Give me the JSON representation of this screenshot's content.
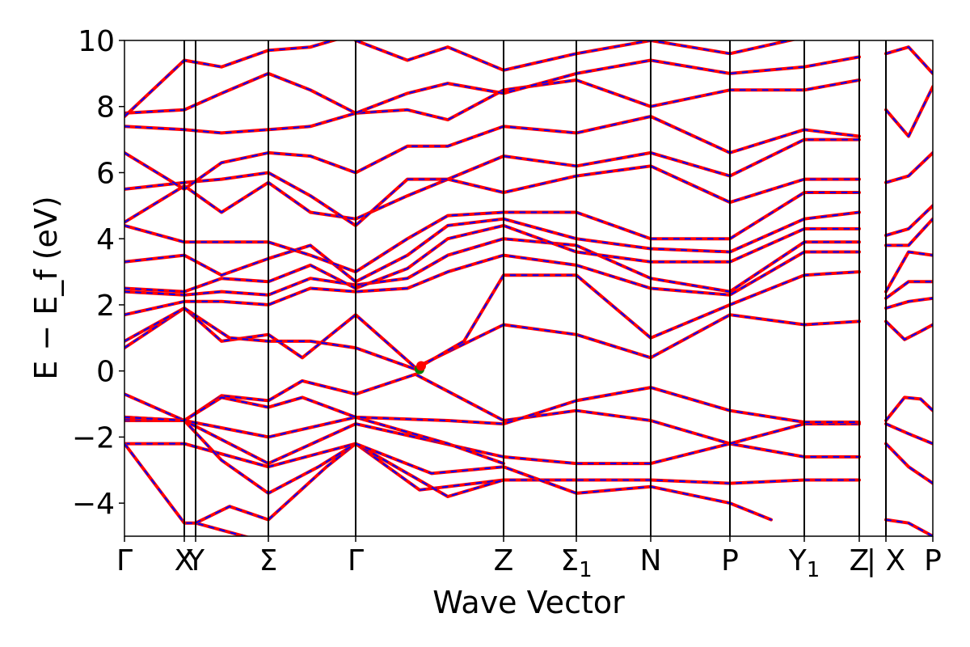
{
  "chart_data": {
    "type": "line",
    "xlabel": "Wave Vector",
    "ylabel": "E − E_f (eV)",
    "ylim": [
      -5,
      10
    ],
    "yticks": [
      -4,
      -2,
      0,
      2,
      4,
      6,
      8,
      10
    ],
    "yticks_labels": [
      "−4",
      "−2",
      "0",
      "2",
      "4",
      "6",
      "8",
      "10"
    ],
    "xlim": [
      0,
      1
    ],
    "kpoints": [
      {
        "label": "Γ",
        "sub": "",
        "x": 0.0
      },
      {
        "label": "X",
        "sub": "",
        "x": 0.074
      },
      {
        "label": "Y",
        "sub": "",
        "x": 0.088
      },
      {
        "label": "Σ",
        "sub": "",
        "x": 0.178
      },
      {
        "label": "Γ",
        "sub": "",
        "x": 0.286
      },
      {
        "label": "Z",
        "sub": "",
        "x": 0.469
      },
      {
        "label": "Σ",
        "sub": "1",
        "x": 0.559
      },
      {
        "label": "N",
        "sub": "",
        "x": 0.651
      },
      {
        "label": "P",
        "sub": "",
        "x": 0.749
      },
      {
        "label": "Y",
        "sub": "1",
        "x": 0.841
      },
      {
        "label": "Z",
        "sub": "",
        "x": 0.909
      },
      {
        "label": "| X",
        "sub": "",
        "x": 0.942
      },
      {
        "label": "P",
        "sub": "",
        "x": 1.0
      }
    ],
    "series_style": [
      {
        "name": "",
        "color": "#ff0000",
        "width": 4,
        "dash": ""
      },
      {
        "name": "",
        "color": "#0000ff",
        "width": 2,
        "dash": "6,8"
      }
    ],
    "markers": [
      {
        "x": 0.365,
        "y": 0.05,
        "color": "#008000"
      },
      {
        "x": 0.367,
        "y": 0.15,
        "color": "#ff0000"
      }
    ],
    "bands": [
      [
        [
          0,
          -2.2
        ],
        [
          0.074,
          -2.2
        ],
        [
          0.178,
          -2.9
        ],
        [
          0.286,
          -2.2
        ],
        [
          0.365,
          -3.6
        ],
        [
          0.469,
          -3.3
        ],
        [
          0.559,
          -3.3
        ],
        [
          0.651,
          -3.3
        ],
        [
          0.749,
          -3.4
        ],
        [
          0.841,
          -3.3
        ],
        [
          0.909,
          -3.3
        ]
      ],
      [
        [
          0,
          -2.2
        ],
        [
          0.04,
          -3.5
        ],
        [
          0.074,
          -4.6
        ],
        [
          0.088,
          -4.6
        ],
        [
          0.178,
          -5.2
        ]
      ],
      [
        [
          0.088,
          -4.6
        ],
        [
          0.13,
          -4.1
        ],
        [
          0.178,
          -4.5
        ],
        [
          0.25,
          -2.9
        ],
        [
          0.286,
          -2.2
        ],
        [
          0.4,
          -3.8
        ],
        [
          0.469,
          -3.3
        ]
      ],
      [
        [
          0,
          -1.4
        ],
        [
          0.074,
          -1.5
        ],
        [
          0.12,
          -2.7
        ],
        [
          0.178,
          -3.7
        ],
        [
          0.24,
          -2.9
        ],
        [
          0.286,
          -2.2
        ],
        [
          0.38,
          -3.1
        ],
        [
          0.469,
          -2.9
        ],
        [
          0.559,
          -3.7
        ],
        [
          0.651,
          -3.5
        ],
        [
          0.749,
          -4.0
        ],
        [
          0.8,
          -4.5
        ]
      ],
      [
        [
          0,
          -1.5
        ],
        [
          0.074,
          -1.5
        ],
        [
          0.178,
          -2.8
        ],
        [
          0.286,
          -1.6
        ],
        [
          0.469,
          -2.6
        ],
        [
          0.559,
          -2.8
        ],
        [
          0.651,
          -2.8
        ],
        [
          0.749,
          -2.2
        ],
        [
          0.841,
          -2.6
        ],
        [
          0.909,
          -2.6
        ]
      ],
      [
        [
          0,
          -1.45
        ],
        [
          0.074,
          -1.5
        ],
        [
          0.178,
          -2.0
        ],
        [
          0.286,
          -1.4
        ],
        [
          0.4,
          -2.2
        ],
        [
          0.469,
          -2.8
        ]
      ],
      [
        [
          0,
          -0.7
        ],
        [
          0.074,
          -1.5
        ],
        [
          0.12,
          -0.75
        ],
        [
          0.178,
          -0.9
        ],
        [
          0.22,
          -0.3
        ],
        [
          0.286,
          -0.7
        ],
        [
          0.36,
          -0.1
        ],
        [
          0.469,
          -1.5
        ],
        [
          0.559,
          -1.2
        ],
        [
          0.651,
          -1.5
        ],
        [
          0.749,
          -2.2
        ],
        [
          0.841,
          -1.6
        ],
        [
          0.909,
          -1.6
        ]
      ],
      [
        [
          0,
          -1.4
        ],
        [
          0.074,
          -1.5
        ],
        [
          0.12,
          -0.8
        ],
        [
          0.178,
          -1.1
        ],
        [
          0.22,
          -0.8
        ],
        [
          0.286,
          -1.4
        ],
        [
          0.4,
          -1.5
        ],
        [
          0.469,
          -1.6
        ],
        [
          0.559,
          -0.9
        ],
        [
          0.651,
          -0.5
        ],
        [
          0.749,
          -1.2
        ],
        [
          0.841,
          -1.55
        ],
        [
          0.909,
          -1.55
        ]
      ],
      [
        [
          0,
          0.7
        ],
        [
          0.074,
          1.9
        ],
        [
          0.12,
          0.9
        ],
        [
          0.178,
          1.1
        ],
        [
          0.22,
          0.4
        ],
        [
          0.286,
          1.7
        ],
        [
          0.36,
          0.1
        ],
        [
          0.469,
          1.4
        ],
        [
          0.559,
          1.1
        ],
        [
          0.651,
          0.4
        ],
        [
          0.749,
          1.7
        ],
        [
          0.841,
          1.4
        ],
        [
          0.909,
          1.5
        ]
      ],
      [
        [
          0,
          0.9
        ],
        [
          0.074,
          1.9
        ],
        [
          0.13,
          1.0
        ],
        [
          0.178,
          0.9
        ],
        [
          0.23,
          0.9
        ],
        [
          0.286,
          0.7
        ],
        [
          0.36,
          0.05
        ],
        [
          0.42,
          0.9
        ],
        [
          0.469,
          2.9
        ],
        [
          0.559,
          2.9
        ],
        [
          0.651,
          1.0
        ],
        [
          0.749,
          2.0
        ],
        [
          0.841,
          2.9
        ],
        [
          0.909,
          3.0
        ]
      ],
      [
        [
          0,
          1.7
        ],
        [
          0.074,
          2.1
        ],
        [
          0.12,
          2.1
        ],
        [
          0.178,
          2.0
        ],
        [
          0.23,
          2.5
        ],
        [
          0.286,
          2.4
        ],
        [
          0.35,
          2.5
        ],
        [
          0.4,
          3.0
        ],
        [
          0.469,
          3.5
        ],
        [
          0.559,
          3.2
        ],
        [
          0.651,
          2.5
        ],
        [
          0.749,
          2.3
        ],
        [
          0.841,
          3.6
        ],
        [
          0.909,
          3.6
        ]
      ],
      [
        [
          0,
          2.4
        ],
        [
          0.074,
          2.3
        ],
        [
          0.12,
          2.4
        ],
        [
          0.178,
          2.3
        ],
        [
          0.23,
          2.8
        ],
        [
          0.286,
          2.6
        ],
        [
          0.35,
          2.8
        ],
        [
          0.4,
          3.5
        ],
        [
          0.469,
          4.0
        ],
        [
          0.559,
          3.8
        ],
        [
          0.651,
          2.8
        ],
        [
          0.749,
          2.4
        ],
        [
          0.841,
          3.9
        ],
        [
          0.909,
          3.9
        ]
      ],
      [
        [
          0,
          2.5
        ],
        [
          0.074,
          2.4
        ],
        [
          0.12,
          2.8
        ],
        [
          0.178,
          2.7
        ],
        [
          0.23,
          3.2
        ],
        [
          0.286,
          2.5
        ],
        [
          0.35,
          3.1
        ],
        [
          0.4,
          4.0
        ],
        [
          0.469,
          4.4
        ],
        [
          0.559,
          3.6
        ],
        [
          0.651,
          3.3
        ],
        [
          0.749,
          3.3
        ],
        [
          0.841,
          4.3
        ],
        [
          0.909,
          4.3
        ]
      ],
      [
        [
          0,
          3.3
        ],
        [
          0.074,
          3.5
        ],
        [
          0.12,
          2.9
        ],
        [
          0.178,
          3.4
        ],
        [
          0.23,
          3.8
        ],
        [
          0.286,
          2.7
        ],
        [
          0.35,
          3.5
        ],
        [
          0.4,
          4.4
        ],
        [
          0.469,
          4.6
        ],
        [
          0.559,
          4.0
        ],
        [
          0.651,
          3.7
        ],
        [
          0.749,
          3.6
        ],
        [
          0.841,
          4.6
        ],
        [
          0.909,
          4.8
        ]
      ],
      [
        [
          0,
          4.4
        ],
        [
          0.074,
          3.9
        ],
        [
          0.12,
          3.9
        ],
        [
          0.178,
          3.9
        ],
        [
          0.23,
          3.5
        ],
        [
          0.286,
          3.0
        ],
        [
          0.35,
          4.0
        ],
        [
          0.4,
          4.7
        ],
        [
          0.469,
          4.8
        ],
        [
          0.559,
          4.8
        ],
        [
          0.651,
          4.0
        ],
        [
          0.749,
          4.0
        ],
        [
          0.841,
          5.4
        ],
        [
          0.909,
          5.4
        ]
      ],
      [
        [
          0,
          4.5
        ],
        [
          0.074,
          5.6
        ],
        [
          0.12,
          4.8
        ],
        [
          0.178,
          5.7
        ],
        [
          0.23,
          4.8
        ],
        [
          0.286,
          4.6
        ],
        [
          0.35,
          5.3
        ],
        [
          0.4,
          5.8
        ],
        [
          0.469,
          5.4
        ],
        [
          0.559,
          5.9
        ],
        [
          0.651,
          6.2
        ],
        [
          0.749,
          5.1
        ],
        [
          0.841,
          5.8
        ],
        [
          0.909,
          5.8
        ]
      ],
      [
        [
          0,
          5.5
        ],
        [
          0.074,
          5.7
        ],
        [
          0.12,
          5.8
        ],
        [
          0.178,
          6.0
        ],
        [
          0.23,
          5.3
        ],
        [
          0.286,
          4.4
        ],
        [
          0.35,
          5.8
        ],
        [
          0.4,
          5.8
        ],
        [
          0.469,
          6.5
        ],
        [
          0.559,
          6.2
        ],
        [
          0.651,
          6.6
        ],
        [
          0.749,
          5.9
        ],
        [
          0.841,
          7.0
        ],
        [
          0.909,
          7.0
        ]
      ],
      [
        [
          0,
          6.6
        ],
        [
          0.074,
          5.5
        ],
        [
          0.12,
          6.3
        ],
        [
          0.178,
          6.6
        ],
        [
          0.23,
          6.5
        ],
        [
          0.286,
          6.0
        ],
        [
          0.35,
          6.8
        ],
        [
          0.4,
          6.8
        ],
        [
          0.469,
          7.4
        ],
        [
          0.559,
          7.2
        ],
        [
          0.651,
          7.7
        ],
        [
          0.749,
          6.6
        ],
        [
          0.841,
          7.3
        ],
        [
          0.909,
          7.1
        ]
      ],
      [
        [
          0,
          7.4
        ],
        [
          0.074,
          7.3
        ],
        [
          0.12,
          7.2
        ],
        [
          0.178,
          7.3
        ],
        [
          0.23,
          7.4
        ],
        [
          0.286,
          7.8
        ],
        [
          0.35,
          7.9
        ],
        [
          0.4,
          7.6
        ],
        [
          0.469,
          8.5
        ],
        [
          0.559,
          8.8
        ],
        [
          0.651,
          8.0
        ],
        [
          0.749,
          8.5
        ],
        [
          0.841,
          8.5
        ],
        [
          0.909,
          8.8
        ]
      ],
      [
        [
          0,
          7.8
        ],
        [
          0.074,
          7.9
        ],
        [
          0.12,
          8.4
        ],
        [
          0.178,
          9.0
        ],
        [
          0.23,
          8.5
        ],
        [
          0.286,
          7.8
        ],
        [
          0.35,
          8.4
        ],
        [
          0.4,
          8.7
        ],
        [
          0.469,
          8.4
        ],
        [
          0.559,
          9.0
        ],
        [
          0.651,
          9.4
        ],
        [
          0.749,
          9.0
        ],
        [
          0.841,
          9.2
        ],
        [
          0.909,
          9.5
        ]
      ],
      [
        [
          0,
          7.7
        ],
        [
          0.074,
          9.4
        ],
        [
          0.12,
          9.2
        ],
        [
          0.178,
          9.7
        ],
        [
          0.23,
          9.8
        ],
        [
          0.286,
          10.2
        ]
      ],
      [
        [
          0.286,
          10.0
        ],
        [
          0.35,
          9.4
        ],
        [
          0.4,
          9.8
        ],
        [
          0.469,
          9.1
        ],
        [
          0.559,
          9.6
        ],
        [
          0.651,
          10.0
        ],
        [
          0.749,
          9.6
        ],
        [
          0.841,
          10.1
        ]
      ],
      [
        [
          0.942,
          2.2
        ],
        [
          0.97,
          2.7
        ],
        [
          1.0,
          2.7
        ]
      ],
      [
        [
          0.942,
          1.9
        ],
        [
          0.97,
          2.1
        ],
        [
          1.0,
          2.2
        ]
      ],
      [
        [
          0.942,
          1.5
        ],
        [
          0.965,
          0.95
        ],
        [
          0.985,
          1.2
        ],
        [
          1.0,
          1.4
        ]
      ],
      [
        [
          0.942,
          2.4
        ],
        [
          0.97,
          3.6
        ],
        [
          1.0,
          3.5
        ]
      ],
      [
        [
          0.942,
          3.8
        ],
        [
          0.97,
          3.8
        ],
        [
          1.0,
          4.6
        ]
      ],
      [
        [
          0.942,
          4.1
        ],
        [
          0.97,
          4.3
        ],
        [
          1.0,
          5.0
        ]
      ],
      [
        [
          0.942,
          5.7
        ],
        [
          0.97,
          5.9
        ],
        [
          1.0,
          6.6
        ]
      ],
      [
        [
          0.942,
          7.9
        ],
        [
          0.97,
          7.1
        ],
        [
          1.0,
          8.6
        ]
      ],
      [
        [
          0.942,
          9.6
        ],
        [
          0.97,
          9.8
        ],
        [
          0.985,
          9.4
        ],
        [
          1.0,
          9.0
        ]
      ],
      [
        [
          0.942,
          -1.5
        ],
        [
          0.965,
          -0.8
        ],
        [
          0.985,
          -0.85
        ],
        [
          1.0,
          -1.2
        ]
      ],
      [
        [
          0.942,
          -1.6
        ],
        [
          0.97,
          -1.9
        ],
        [
          1.0,
          -2.2
        ]
      ],
      [
        [
          0.942,
          -2.2
        ],
        [
          0.97,
          -2.9
        ],
        [
          1.0,
          -3.4
        ]
      ],
      [
        [
          0.942,
          -4.5
        ],
        [
          0.97,
          -4.6
        ],
        [
          1.0,
          -5.0
        ]
      ]
    ]
  }
}
